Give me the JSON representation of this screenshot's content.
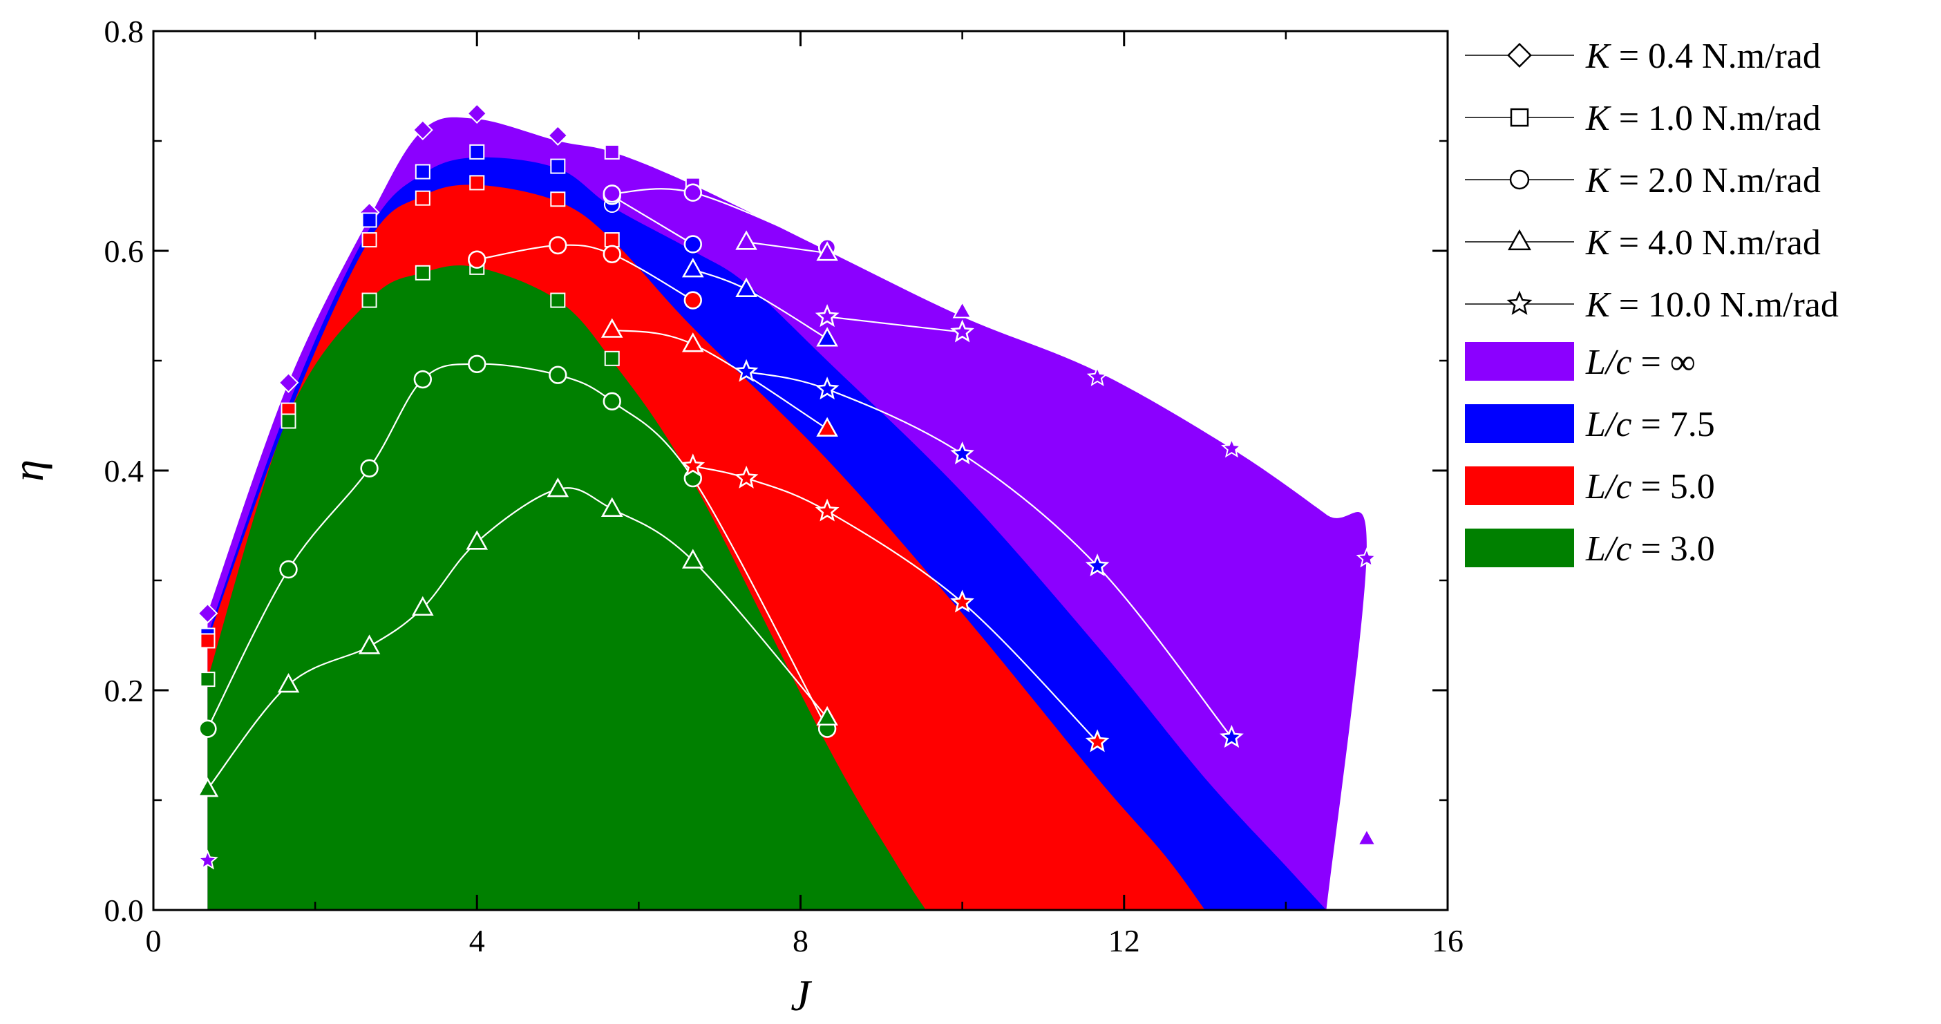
{
  "chart_data": {
    "type": "area",
    "xlabel": "J",
    "ylabel": "η",
    "xlim": [
      0,
      16
    ],
    "ylim": [
      0,
      0.8
    ],
    "xticks": [
      "0",
      "4",
      "8",
      "12",
      "16"
    ],
    "yticks": [
      "0.0",
      "0.2",
      "0.4",
      "0.6",
      "0.8"
    ],
    "legend_position": "right",
    "legend": {
      "markers": [
        {
          "symbol": "diamond",
          "var": "K",
          "text": " = 0.4 N.m/rad"
        },
        {
          "symbol": "square",
          "var": "K",
          "text": " = 1.0 N.m/rad"
        },
        {
          "symbol": "circle",
          "var": "K",
          "text": " = 2.0 N.m/rad"
        },
        {
          "symbol": "triangle",
          "var": "K",
          "text": " = 4.0 N.m/rad"
        },
        {
          "symbol": "star",
          "var": "K",
          "text": " = 10.0 N.m/rad"
        }
      ],
      "fills": [
        {
          "var": "L/c",
          "text": " = ∞",
          "color": "#8B00FF"
        },
        {
          "var": "L/c",
          "text": " = 7.5",
          "color": "#0000FF"
        },
        {
          "var": "L/c",
          "text": " = 5.0",
          "color": "#FF0000"
        },
        {
          "var": "L/c",
          "text": " = 3.0",
          "color": "#008000"
        }
      ]
    },
    "regions": [
      {
        "label": "L/c = ∞",
        "color": "#8B00FF",
        "x": [
          0.67,
          1.67,
          2.67,
          3.33,
          4.0,
          5.0,
          5.67,
          6.67,
          8.33,
          10.0,
          11.67,
          13.33,
          14.5,
          15.0
        ],
        "y": [
          0.27,
          0.48,
          0.63,
          0.71,
          0.72,
          0.7,
          0.69,
          0.66,
          0.6,
          0.54,
          0.49,
          0.42,
          0.36,
          0.33
        ],
        "x_end": 14.5
      },
      {
        "label": "L/c = 7.5",
        "color": "#0000FF",
        "x": [
          0.67,
          1.67,
          2.67,
          3.33,
          4.0,
          5.0,
          5.67,
          6.67,
          7.33,
          8.33,
          10.0,
          11.67,
          13.0,
          14.0
        ],
        "y": [
          0.25,
          0.46,
          0.62,
          0.67,
          0.685,
          0.675,
          0.64,
          0.6,
          0.57,
          0.5,
          0.38,
          0.24,
          0.12,
          0.04
        ],
        "x_end": 14.5
      },
      {
        "label": "L/c = 5.0",
        "color": "#FF0000",
        "x": [
          0.67,
          1.67,
          2.67,
          3.33,
          4.0,
          5.0,
          5.67,
          6.67,
          8.33,
          10.0,
          11.67,
          12.5
        ],
        "y": [
          0.245,
          0.45,
          0.61,
          0.65,
          0.66,
          0.645,
          0.61,
          0.53,
          0.41,
          0.27,
          0.12,
          0.05
        ],
        "x_end": 13.0
      },
      {
        "label": "L/c = 3.0",
        "color": "#008000",
        "x": [
          0.67,
          1.67,
          2.67,
          3.33,
          4.0,
          5.0,
          5.67,
          6.67,
          8.33,
          9.2
        ],
        "y": [
          0.21,
          0.45,
          0.555,
          0.58,
          0.585,
          0.555,
          0.5,
          0.39,
          0.15,
          0.04
        ],
        "x_end": 9.55
      }
    ],
    "markers": [
      {
        "symbol": "diamond",
        "fill": "#8B00FF",
        "x": [
          0.67,
          1.67,
          2.67,
          3.33,
          4.0,
          5.0
        ],
        "y": [
          0.27,
          0.48,
          0.635,
          0.71,
          0.725,
          0.705
        ]
      },
      {
        "symbol": "square",
        "fill": "#8B00FF",
        "x": [
          5.67,
          6.67
        ],
        "y": [
          0.69,
          0.66
        ]
      },
      {
        "symbol": "circle",
        "fill": "#8B00FF",
        "x": [
          8.33
        ],
        "y": [
          0.6
        ]
      },
      {
        "symbol": "triangle",
        "fill": "#8B00FF",
        "x": [
          10.0,
          15.0
        ],
        "y": [
          0.545,
          0.065
        ]
      },
      {
        "symbol": "star",
        "fill": "#8B00FF",
        "x": [
          11.67,
          13.33,
          15.0,
          0.67
        ],
        "y": [
          0.485,
          0.42,
          0.32,
          0.045
        ]
      },
      {
        "symbol": "square",
        "fill": "#0000FF",
        "x": [
          0.67,
          2.67,
          3.33,
          4.0,
          5.0
        ],
        "y": [
          0.25,
          0.628,
          0.672,
          0.69,
          0.677
        ]
      },
      {
        "symbol": "circle",
        "fill": "#0000FF",
        "x": [
          5.67
        ],
        "y": [
          0.642
        ]
      },
      {
        "symbol": "square",
        "fill": "#FF0000",
        "x": [
          0.67,
          1.67,
          2.67,
          3.33,
          4.0,
          5.0,
          5.67
        ],
        "y": [
          0.245,
          0.455,
          0.61,
          0.648,
          0.662,
          0.647,
          0.61
        ]
      },
      {
        "symbol": "square",
        "fill": "#008000",
        "x": [
          0.67,
          1.67,
          2.67,
          3.33,
          4.0,
          5.0,
          5.67
        ],
        "y": [
          0.21,
          0.445,
          0.555,
          0.58,
          0.585,
          0.555,
          0.502
        ]
      },
      {
        "symbol": "circle",
        "fill": "#008000",
        "x": [
          0.67,
          6.67
        ],
        "y": [
          0.165,
          0.393
        ]
      }
    ],
    "curves": [
      {
        "series": "K = 2.0 N.m/rad, L/c = 3.0",
        "symbol": "circle",
        "x": [
          0.67,
          1.67,
          2.67,
          3.33,
          4.0,
          5.0,
          5.67,
          6.67,
          8.33
        ],
        "y": [
          0.165,
          0.31,
          0.402,
          0.483,
          0.497,
          0.487,
          0.463,
          0.393,
          0.165
        ]
      },
      {
        "series": "K = 4.0 N.m/rad, L/c = 3.0",
        "symbol": "triangle",
        "x": [
          0.67,
          1.67,
          2.67,
          3.33,
          4.0,
          5.0,
          5.67,
          6.67,
          8.33
        ],
        "y": [
          0.11,
          0.205,
          0.24,
          0.275,
          0.335,
          0.383,
          0.365,
          0.318,
          0.175
        ]
      },
      {
        "series": "K = 2.0 N.m/rad, L/c = 5.0",
        "symbol": "circle",
        "x": [
          4.0,
          5.0,
          5.67,
          6.67
        ],
        "y": [
          0.592,
          0.605,
          0.597,
          0.555
        ]
      },
      {
        "series": "K = 4.0 N.m/rad, L/c = 5.0",
        "symbol": "triangle",
        "x": [
          5.67,
          6.67,
          8.33
        ],
        "y": [
          0.528,
          0.515,
          0.438
        ]
      },
      {
        "series": "K = 10.0 N.m/rad, L/c = 5.0",
        "symbol": "star",
        "x": [
          6.67,
          7.33,
          8.33,
          10.0,
          11.67
        ],
        "y": [
          0.404,
          0.393,
          0.363,
          0.28,
          0.153
        ]
      },
      {
        "series": "K = 2.0 N.m/rad, L/c = 7.5",
        "symbol": "circle",
        "x": [
          5.67,
          6.67
        ],
        "y": [
          0.65,
          0.606
        ]
      },
      {
        "series": "K = 4.0 N.m/rad, L/c = 7.5",
        "symbol": "triangle",
        "x": [
          6.67,
          7.33,
          8.33
        ],
        "y": [
          0.583,
          0.565,
          0.52
        ]
      },
      {
        "series": "K = 10.0 N.m/rad, L/c = 7.5",
        "symbol": "star",
        "x": [
          7.33,
          8.33,
          10.0,
          11.67,
          13.33
        ],
        "y": [
          0.49,
          0.474,
          0.415,
          0.313,
          0.157
        ]
      },
      {
        "series": "K = 2.0 N.m/rad, L/c = ∞",
        "symbol": "circle",
        "x": [
          5.67,
          6.67,
          8.33
        ],
        "y": [
          0.652,
          0.653,
          0.603
        ]
      },
      {
        "series": "K = 4.0 N.m/rad, L/c = ∞",
        "symbol": "triangle",
        "x": [
          7.33,
          8.33
        ],
        "y": [
          0.608,
          0.598
        ]
      },
      {
        "series": "K = 10.0 N.m/rad, L/c = ∞",
        "symbol": "star",
        "x": [
          8.33,
          10.0
        ],
        "y": [
          0.54,
          0.526
        ]
      }
    ]
  }
}
